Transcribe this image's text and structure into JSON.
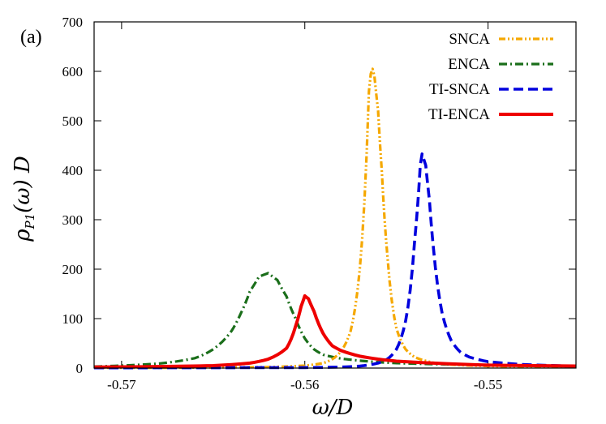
{
  "chart_data": {
    "type": "line",
    "panel_label": "(a)",
    "xlabel": "ω/D",
    "ylabel": "ρP1(ω) D",
    "ylabel_parts": {
      "rho": "ρ",
      "sub": "P1",
      "rest": "(ω) D"
    },
    "xlim": [
      -0.5715,
      -0.5452
    ],
    "ylim": [
      0,
      700
    ],
    "xticks": [
      -0.57,
      -0.56,
      -0.55
    ],
    "xtick_labels": [
      "-0.57",
      "-0.56",
      "-0.55"
    ],
    "yticks": [
      0,
      100,
      200,
      300,
      400,
      500,
      600,
      700
    ],
    "ytick_labels": [
      "0",
      "100",
      "200",
      "300",
      "400",
      "500",
      "600",
      "700"
    ],
    "legend_position": "top-right",
    "series": [
      {
        "name": "SNCA",
        "color": "#f5a800",
        "style": "dash-dot-dot",
        "x": [
          -0.5715,
          -0.566,
          -0.562,
          -0.56,
          -0.559,
          -0.5585,
          -0.558,
          -0.5575,
          -0.557,
          -0.5668,
          -0.5565,
          -0.5564,
          -0.5563,
          -0.5562,
          -0.556,
          -0.5558,
          -0.5555,
          -0.555,
          -0.5545,
          -0.554,
          -0.553,
          -0.552,
          -0.55,
          -0.5452
        ],
        "y": [
          0.5,
          1,
          2,
          5,
          10,
          18,
          35,
          75,
          200,
          0.7,
          560,
          595,
          605,
          590,
          520,
          400,
          230,
          80,
          38,
          22,
          11,
          7,
          4,
          2
        ]
      },
      {
        "name": "ENCA",
        "color": "#1a6e1a",
        "style": "dash-dot",
        "x": [
          -0.5715,
          -0.57,
          -0.568,
          -0.566,
          -0.565,
          -0.564,
          -0.5635,
          -0.563,
          -0.5625,
          -0.562,
          -0.5615,
          -0.561,
          -0.5605,
          -0.56,
          -0.5595,
          -0.559,
          -0.558,
          -0.557,
          -0.556,
          -0.555,
          -0.553,
          -0.55,
          -0.5452
        ],
        "y": [
          3,
          5,
          9,
          20,
          38,
          75,
          110,
          155,
          185,
          192,
          178,
          145,
          100,
          60,
          38,
          27,
          19,
          15,
          12,
          10,
          8,
          6,
          4
        ]
      },
      {
        "name": "TI-SNCA",
        "color": "#0000dd",
        "style": "dashed",
        "x": [
          -0.5715,
          -0.56,
          -0.558,
          -0.557,
          -0.556,
          -0.5555,
          -0.555,
          -0.5545,
          -0.554,
          -0.5538,
          -0.5537,
          -0.5536,
          -0.5534,
          -0.5532,
          -0.553,
          -0.5525,
          -0.552,
          -0.5515,
          -0.551,
          -0.55,
          -0.548,
          -0.5452
        ],
        "y": [
          0.5,
          1,
          2,
          4,
          10,
          18,
          38,
          95,
          260,
          350,
          410,
          433,
          410,
          340,
          250,
          110,
          55,
          32,
          22,
          13,
          7,
          4
        ]
      },
      {
        "name": "TI-ENCA",
        "color": "#ee0000",
        "style": "solid",
        "x": [
          -0.5715,
          -0.568,
          -0.565,
          -0.563,
          -0.562,
          -0.561,
          -0.5605,
          -0.5602,
          -0.56,
          -0.5598,
          -0.5595,
          -0.559,
          -0.5585,
          -0.558,
          -0.557,
          -0.556,
          -0.555,
          -0.553,
          -0.55,
          -0.5452
        ],
        "y": [
          2,
          3,
          5,
          10,
          18,
          40,
          85,
          125,
          146,
          140,
          115,
          70,
          45,
          35,
          24,
          18,
          14,
          10,
          6,
          4
        ]
      }
    ]
  }
}
